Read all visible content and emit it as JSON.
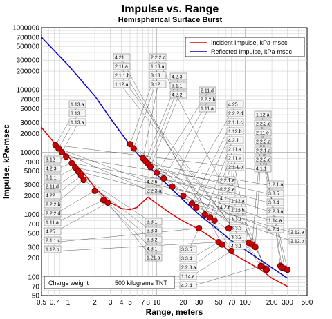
{
  "chart_data": {
    "type": "line",
    "title": "Impulse vs. Range",
    "subtitle": "Hemispherical Surface Burst",
    "xlabel": "Range, meters",
    "ylabel": "Impulse, kPa-msec",
    "xscale": "log",
    "yscale": "log",
    "xlim": [
      0.5,
      500
    ],
    "ylim": [
      50,
      1000000
    ],
    "grid": true,
    "legend_position": "top-right",
    "x_tick_labels": [
      "0.5",
      "0.7",
      "1",
      "2",
      "3",
      "4",
      "5",
      "7",
      "8",
      "10",
      "20",
      "30",
      "50",
      "70",
      "100",
      "200",
      "300",
      "500"
    ],
    "x_tick_values": [
      0.5,
      0.7,
      1,
      2,
      3,
      4,
      5,
      7,
      8,
      10,
      20,
      30,
      50,
      70,
      100,
      200,
      300,
      500
    ],
    "y_tick_labels": [
      "1000000",
      "700000",
      "500000",
      "300000",
      "200000",
      "100000",
      "70000",
      "50000",
      "30000",
      "20000",
      "10000",
      "7000",
      "5000",
      "3000",
      "2000",
      "1000",
      "700",
      "500",
      "300",
      "200",
      "100",
      "70",
      "50"
    ],
    "y_tick_values": [
      1000000,
      700000,
      500000,
      300000,
      200000,
      100000,
      70000,
      50000,
      30000,
      20000,
      10000,
      7000,
      5000,
      3000,
      2000,
      1000,
      700,
      500,
      300,
      200,
      100,
      70,
      50
    ],
    "series": [
      {
        "name": "Incident Impulse, kPa-msec",
        "color": "#e00000",
        "x": [
          0.5,
          0.7,
          1,
          1.5,
          2,
          3,
          4,
          5,
          6,
          7,
          8,
          10,
          15,
          20,
          30,
          50,
          70,
          100,
          150,
          200,
          300
        ],
        "y": [
          25000,
          14000,
          8500,
          4600,
          2700,
          1550,
          1250,
          1200,
          1300,
          1600,
          1900,
          1500,
          1000,
          780,
          580,
          360,
          240,
          180,
          130,
          95,
          70
        ]
      },
      {
        "name": "Reflected Impulse, kPa-msec",
        "color": "#0000cc",
        "x": [
          0.5,
          1,
          2,
          3,
          4,
          5,
          7,
          10,
          20,
          30,
          50,
          70,
          100,
          200,
          300
        ],
        "y": [
          700000,
          250000,
          80000,
          35000,
          20000,
          13000,
          7500,
          4400,
          1700,
          1000,
          560,
          380,
          270,
          140,
          95
        ]
      }
    ],
    "markers": {
      "incident": [
        [
          0.72,
          13000
        ],
        [
          0.78,
          11500
        ],
        [
          0.85,
          10000
        ],
        [
          0.95,
          8500
        ],
        [
          1.1,
          6700
        ],
        [
          1.2,
          5700
        ],
        [
          1.3,
          4900
        ],
        [
          1.4,
          4200
        ],
        [
          1.5,
          3600
        ],
        [
          2.0,
          2400
        ],
        [
          2.5,
          1700
        ],
        [
          2.8,
          1550
        ],
        [
          30,
          600
        ],
        [
          50,
          360
        ],
        [
          55,
          330
        ],
        [
          70,
          260
        ],
        [
          150,
          150
        ],
        [
          170,
          135
        ],
        [
          175,
          130
        ]
      ],
      "reflected": [
        [
          5.0,
          13500
        ],
        [
          5.5,
          11500
        ],
        [
          7.0,
          8000
        ],
        [
          7.5,
          7200
        ],
        [
          8.0,
          6500
        ],
        [
          8.5,
          5800
        ],
        [
          10,
          4700
        ],
        [
          12,
          3800
        ],
        [
          15,
          2800
        ],
        [
          20,
          2000
        ],
        [
          25,
          1500
        ],
        [
          28,
          1300
        ],
        [
          35,
          1000
        ],
        [
          40,
          900
        ],
        [
          45,
          800
        ],
        [
          65,
          600
        ],
        [
          110,
          350
        ],
        [
          120,
          330
        ],
        [
          130,
          300
        ],
        [
          250,
          150
        ],
        [
          260,
          140
        ],
        [
          280,
          135
        ],
        [
          300,
          130
        ]
      ]
    },
    "annotations": [
      "1.13.a",
      "3.13",
      "1.13.a",
      "3.12",
      "4.2.3",
      "3.1.1",
      "2.11.d",
      "4.22",
      "2.2.2.b",
      "2.2.2.d",
      "1.11.a",
      "4.25",
      "2.1.1.c",
      "1.12.b",
      "4.21",
      "2.11.a",
      "2.1.1.b",
      "1.12.a",
      "2.2.2.c",
      "1.13.a",
      "3.13",
      "3.12",
      "4.2.3",
      "3.1.1",
      "4.2.2",
      "2.11.d",
      "2.2.2.b",
      "1.11.a",
      "4.25",
      "2.2.2.d",
      "2.1.1.c",
      "1.12.b",
      "4.2.1",
      "2.11.a",
      "2.11.e",
      "2.1.1.b",
      "1.12.a",
      "2.2.2.c",
      "2.11.e",
      "2.2.2.a",
      "2.2.1.a",
      "2.2.2.e",
      "4.1.1",
      "4.2.6",
      "2.2.2.a",
      "2.2.1.a",
      "2.2.2.e",
      "4.11",
      "4.2.6",
      "3.3.1",
      "3.3.3",
      "3.3.2",
      "4.3.1",
      "1.21.a",
      "3.3.5",
      "3.3.4",
      "2.2.3.a",
      "1.14.a",
      "4.2.4",
      "2.12.a",
      "2.12.b",
      "3.3.1",
      "3.3.3",
      "3.3.2",
      "4.3.1",
      "1.2.1.a",
      "3.3.5",
      "3.3.4",
      "2.2.3.a",
      "1.14.a",
      "4.2.4",
      "2.12.a",
      "2.12.b"
    ],
    "note_label": "Charge weight",
    "note_value": "500 kilograms TNT"
  }
}
